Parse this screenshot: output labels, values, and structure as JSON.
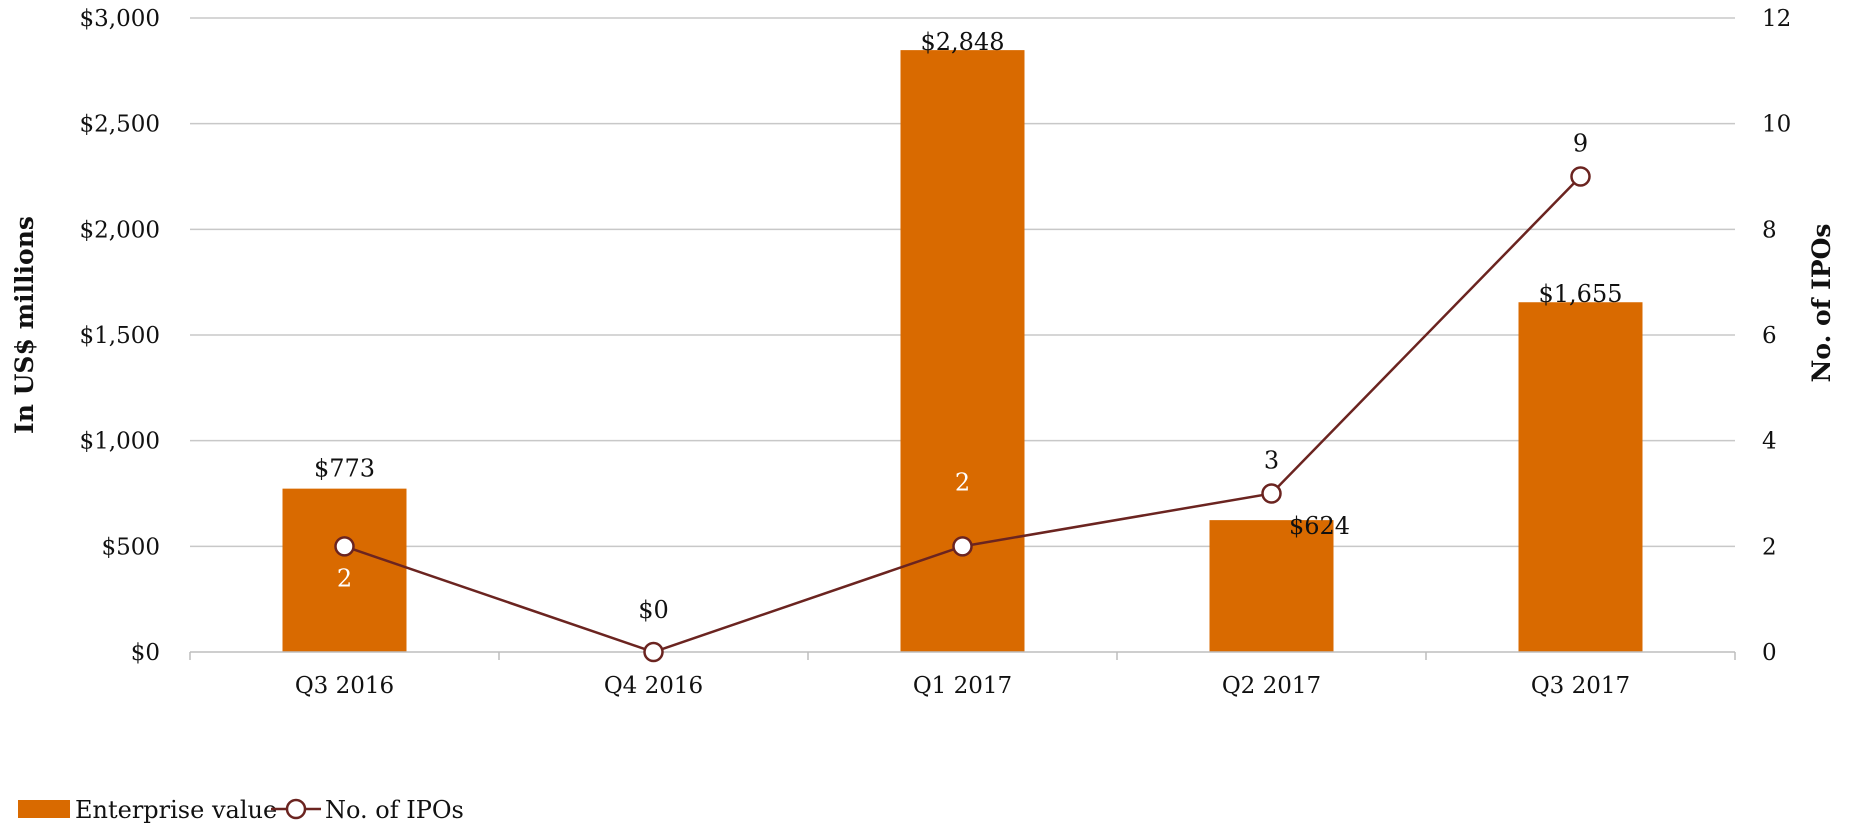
{
  "chart_data": {
    "type": "bar",
    "categories": [
      "Q3 2016",
      "Q4 2016",
      "Q1 2017",
      "Q2 2017",
      "Q3 2017"
    ],
    "series": [
      {
        "name": "Enterprise value",
        "type": "bar",
        "axis": "left",
        "values": [
          773,
          0,
          2848,
          624,
          1655
        ],
        "labels": [
          "$773",
          "$0",
          "$2,848",
          "$624",
          "$1,655"
        ],
        "color": "#d96a00"
      },
      {
        "name": "No. of IPOs",
        "type": "line",
        "axis": "right",
        "values": [
          2,
          0,
          2,
          3,
          9
        ],
        "labels": [
          "2",
          "",
          "2",
          "3",
          "9"
        ],
        "color": "#6b2420"
      }
    ],
    "ylabel": "In US$ millions",
    "y2label": "No. of IPOs",
    "ylim": [
      0,
      3000
    ],
    "y2lim": [
      0,
      12
    ],
    "yticks": [
      "$0",
      "$500",
      "$1,000",
      "$1,500",
      "$2,000",
      "$2,500",
      "$3,000"
    ],
    "y2ticks": [
      "0",
      "2",
      "4",
      "6",
      "8",
      "10",
      "12"
    ],
    "grid": true,
    "legend_position": "bottom-left"
  }
}
